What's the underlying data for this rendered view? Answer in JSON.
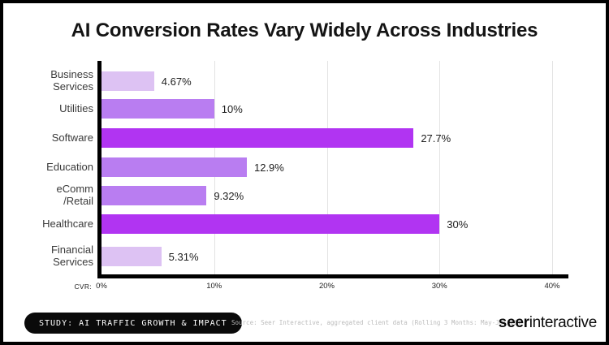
{
  "title": "AI Conversion Rates Vary Widely Across Industries",
  "chart_data": {
    "type": "bar",
    "orientation": "horizontal",
    "title": "AI Conversion Rates Vary Widely Across Industries",
    "xlabel": "CVR:",
    "xlim": [
      0,
      40
    ],
    "x_ticks": [
      0,
      10,
      20,
      30,
      40
    ],
    "x_tick_labels": [
      "0%",
      "10%",
      "20%",
      "30%",
      "40%"
    ],
    "grid": true,
    "categories": [
      "Business Services",
      "Utilities",
      "Software",
      "Education",
      "eComm /Retail",
      "Healthcare",
      "Financial Services"
    ],
    "category_label_lines": [
      [
        "Business",
        "Services"
      ],
      [
        "Utilities"
      ],
      [
        "Software"
      ],
      [
        "Education"
      ],
      [
        "eComm",
        "/Retail"
      ],
      [
        "Healthcare"
      ],
      [
        "Financial",
        "Services"
      ]
    ],
    "values": [
      4.67,
      10,
      27.7,
      12.9,
      9.32,
      30,
      5.31
    ],
    "value_labels": [
      "4.67%",
      "10%",
      "27.7%",
      "12.9%",
      "9.32%",
      "30%",
      "5.31%"
    ],
    "bar_colors": [
      "#DDC2F3",
      "#B97DF1",
      "#B134F2",
      "#B97DF1",
      "#B97DF1",
      "#B134F2",
      "#DDC2F3"
    ],
    "legend": null
  },
  "axis": {
    "label": "CVR:",
    "tick_labels": [
      "0%",
      "10%",
      "20%",
      "30%",
      "40%"
    ]
  },
  "colors": {
    "bar_bright": "#B134F2",
    "bar_medium": "#B97DF1",
    "bar_light": "#DDC2F3",
    "axis": "#000000",
    "grid": "#e3e3e3",
    "badge_bg": "#0a0a0a",
    "badge_text": "#ffffff",
    "source_text": "#bcbcbc"
  },
  "footer": {
    "badge_label": "STUDY: AI TRAFFIC GROWTH & IMPACT",
    "source_text": "Source: Seer Interactive, aggregated client data (Rolling 3 Months: May-Jul'25)",
    "logo_bold": "seer",
    "logo_rest": "interactive"
  }
}
